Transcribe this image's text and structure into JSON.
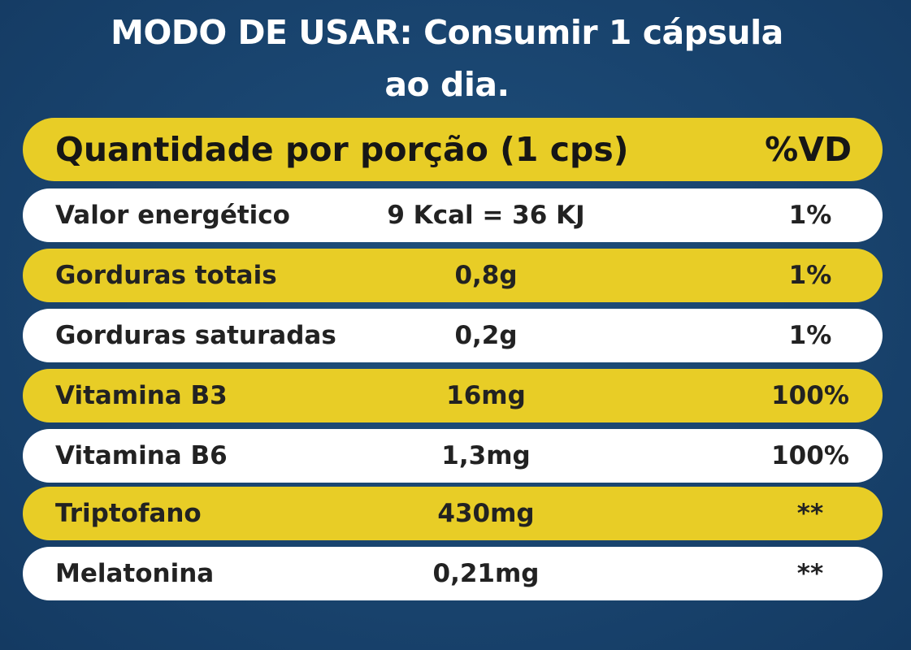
{
  "usage": {
    "label": "MODO DE USAR:",
    "text_line1": "Consumir 1 cápsula",
    "text_line2": "ao dia."
  },
  "table": {
    "header": {
      "label": "Quantidade por porção (1 cps)",
      "vd": "%VD"
    },
    "rows": [
      {
        "name": "Valor energético",
        "qty": "9 Kcal = 36 KJ",
        "vd": "1%"
      },
      {
        "name": "Gorduras totais",
        "qty": "0,8g",
        "vd": "1%"
      },
      {
        "name": "Gorduras saturadas",
        "qty": "0,2g",
        "vd": "1%"
      },
      {
        "name": "Vitamina B3",
        "qty": "16mg",
        "vd": "100%"
      },
      {
        "name": "Vitamina B6",
        "qty": "1,3mg",
        "vd": "100%"
      },
      {
        "name": "Triptofano",
        "qty": "430mg",
        "vd": "**"
      },
      {
        "name": "Melatonina",
        "qty": "0,21mg",
        "vd": "**"
      }
    ]
  },
  "colors": {
    "background": "#1a4671",
    "yellow_row": "#e8cd26",
    "white_row": "#ffffff",
    "text_dark": "#1b1b1b",
    "text_light": "#ffffff"
  }
}
